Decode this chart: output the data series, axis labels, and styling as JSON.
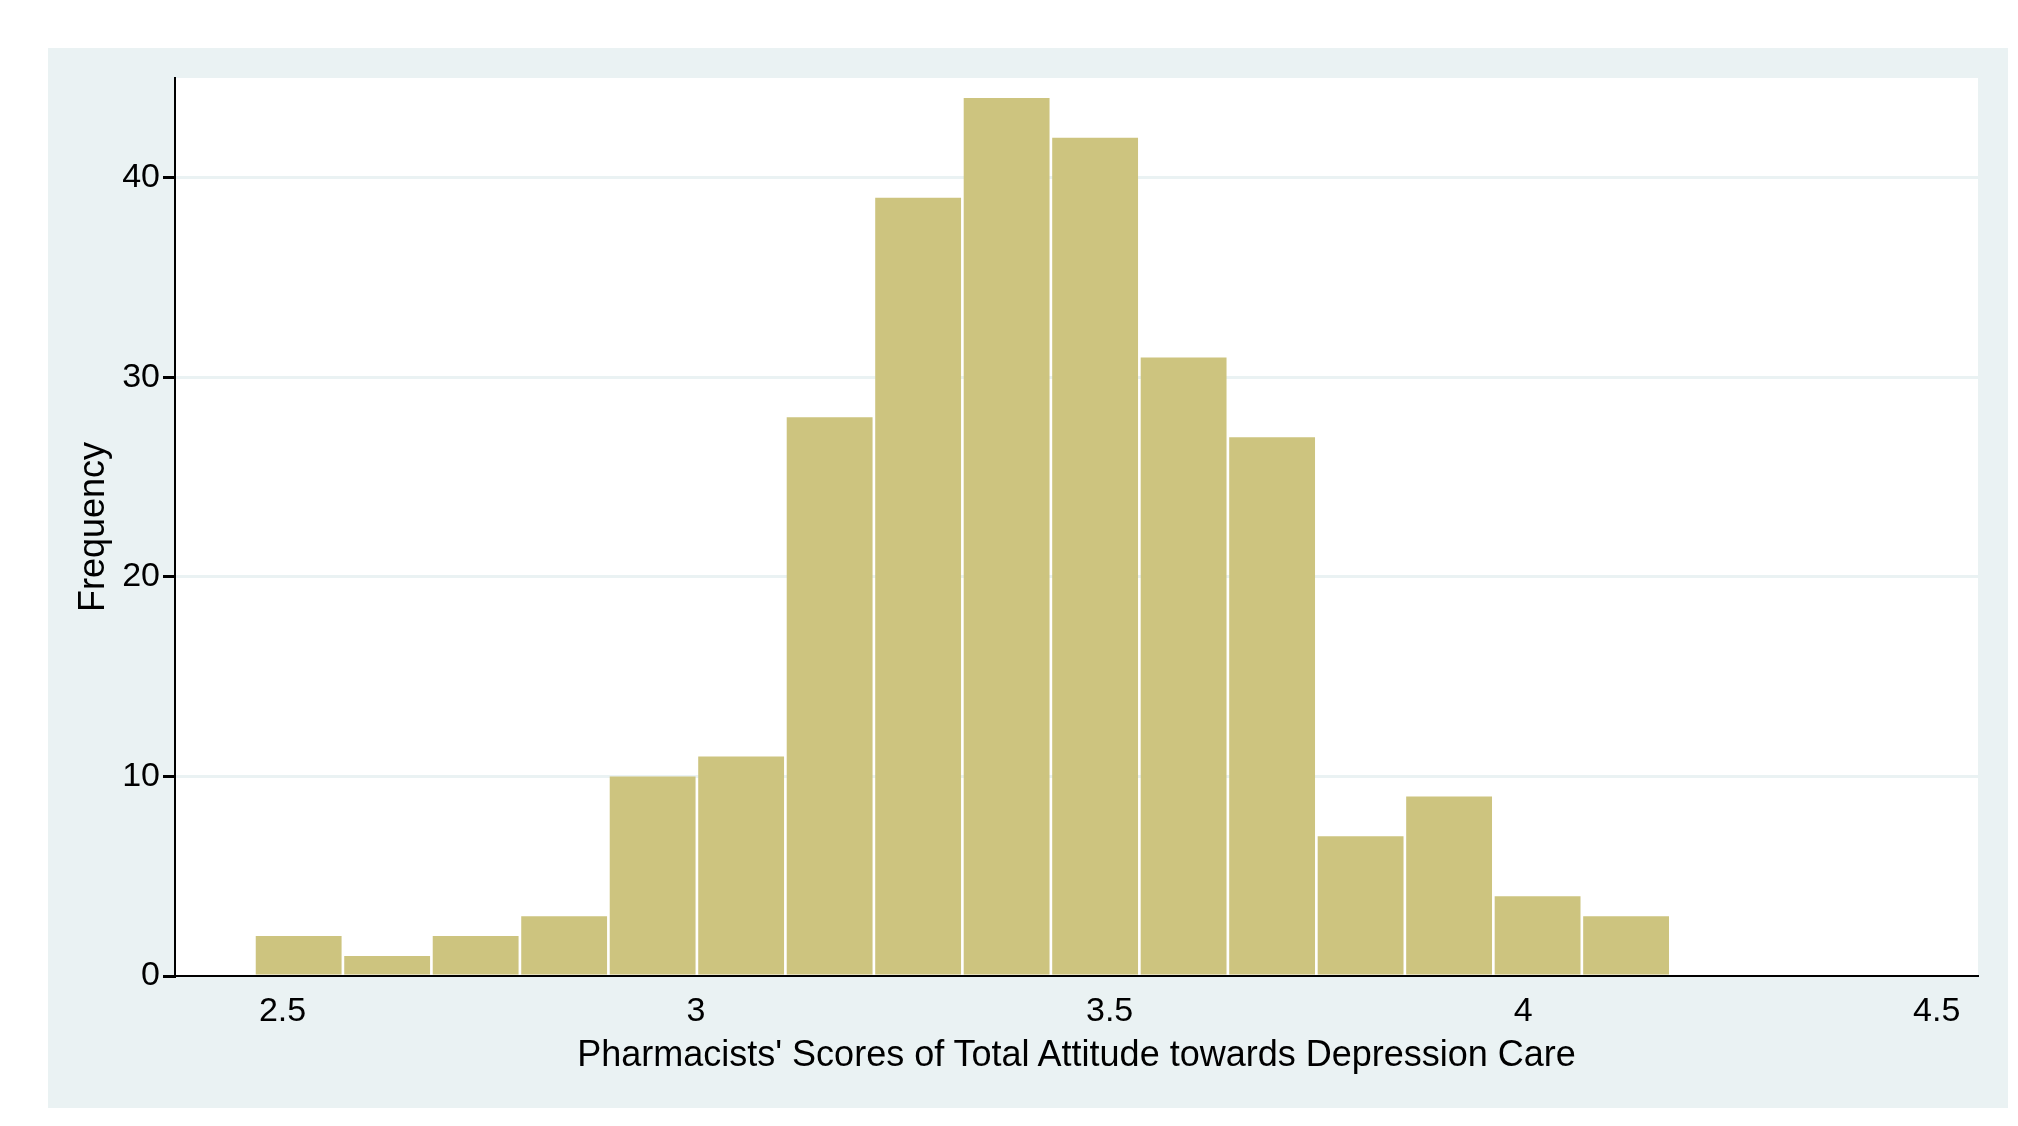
{
  "chart_data": {
    "type": "histogram",
    "xlabel": "Pharmacists' Scores of Total Attitude towards Depression Care",
    "ylabel": "Frequency",
    "bins": [
      2.466,
      2.573,
      2.68,
      2.787,
      2.894,
      3.001,
      3.108,
      3.215,
      3.322,
      3.429,
      3.536,
      3.643,
      3.75,
      3.857,
      3.964,
      4.071,
      4.178
    ],
    "values": [
      2,
      1,
      2,
      3,
      10,
      11,
      28,
      39,
      44,
      42,
      31,
      27,
      7,
      9,
      4,
      3
    ],
    "color": "#cdc47f",
    "xlim": [
      2.37,
      4.55
    ],
    "xticks": [
      2.5,
      3,
      3.5,
      4,
      4.5
    ],
    "ylim": [
      0,
      45
    ],
    "yticks": [
      0,
      10,
      20,
      30,
      40
    ],
    "grid": "y",
    "legend": false
  }
}
